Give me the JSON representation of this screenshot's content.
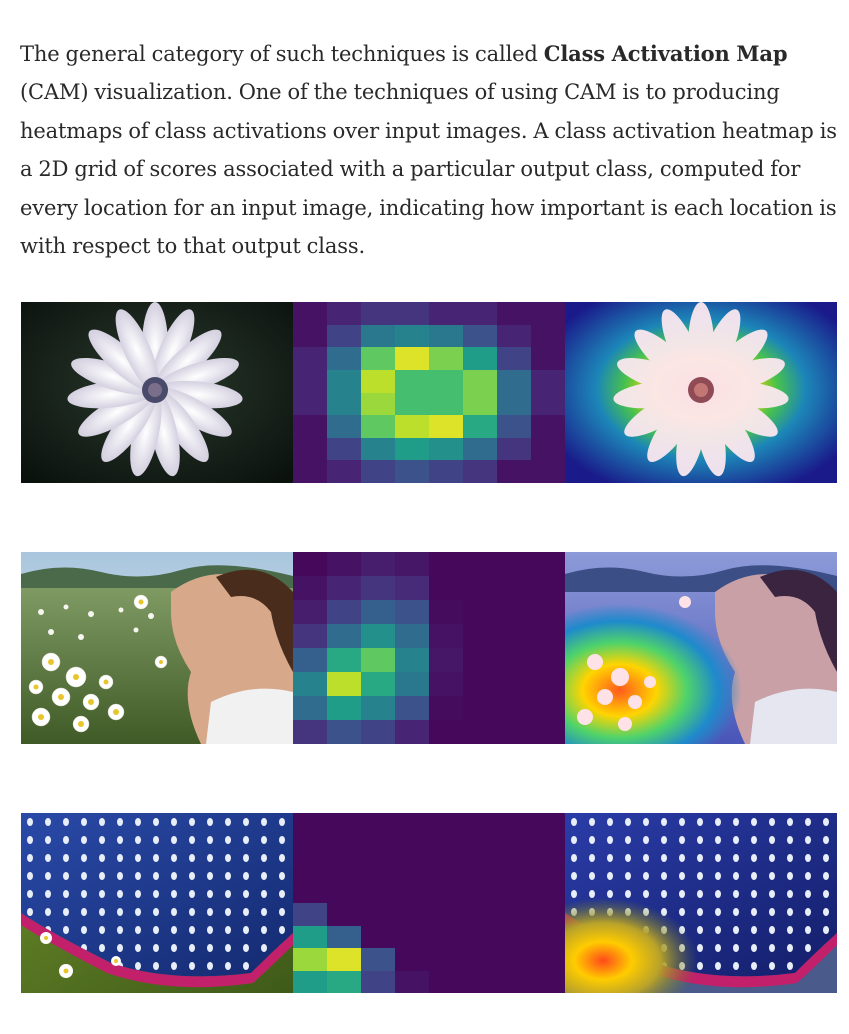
{
  "paragraph": {
    "before_bold": "The general category of such techniques is called ",
    "bold": "Class Activation Map",
    "after_bold": " (CAM) visualization. One of the techniques of using CAM is to producing heatmaps of class activations over input images. A class activation heatmap is a 2D grid of scores associated with a particular output class, computed for every location for an input image, indicating how important is each location is with respect to that output class."
  },
  "figures": [
    {
      "subject": "white daisy flower on dark background",
      "heatmap_grid": [
        [
          0.05,
          0.1,
          0.15,
          0.15,
          0.1,
          0.1,
          0.05,
          0.05
        ],
        [
          0.05,
          0.2,
          0.4,
          0.45,
          0.4,
          0.25,
          0.1,
          0.05
        ],
        [
          0.1,
          0.35,
          0.75,
          0.95,
          0.8,
          0.55,
          0.2,
          0.05
        ],
        [
          0.1,
          0.45,
          0.9,
          0.7,
          0.7,
          0.8,
          0.35,
          0.1
        ],
        [
          0.1,
          0.45,
          0.85,
          0.7,
          0.7,
          0.8,
          0.35,
          0.1
        ],
        [
          0.05,
          0.35,
          0.75,
          0.9,
          0.95,
          0.6,
          0.25,
          0.05
        ],
        [
          0.05,
          0.2,
          0.45,
          0.55,
          0.5,
          0.35,
          0.15,
          0.05
        ],
        [
          0.05,
          0.1,
          0.2,
          0.25,
          0.2,
          0.15,
          0.05,
          0.05
        ]
      ]
    },
    {
      "subject": "girl with daisy bouquet in a field",
      "heatmap_grid": [
        [
          0.02,
          0.05,
          0.08,
          0.06,
          0.02,
          0.02,
          0.02,
          0.02
        ],
        [
          0.05,
          0.1,
          0.15,
          0.12,
          0.02,
          0.02,
          0.02,
          0.02
        ],
        [
          0.08,
          0.2,
          0.3,
          0.25,
          0.03,
          0.02,
          0.02,
          0.02
        ],
        [
          0.15,
          0.35,
          0.5,
          0.35,
          0.05,
          0.02,
          0.02,
          0.02
        ],
        [
          0.3,
          0.6,
          0.75,
          0.45,
          0.06,
          0.02,
          0.02,
          0.02
        ],
        [
          0.45,
          0.9,
          0.6,
          0.4,
          0.05,
          0.02,
          0.02,
          0.02
        ],
        [
          0.35,
          0.55,
          0.45,
          0.25,
          0.03,
          0.02,
          0.02,
          0.02
        ],
        [
          0.15,
          0.25,
          0.2,
          0.1,
          0.02,
          0.02,
          0.02,
          0.02
        ]
      ]
    },
    {
      "subject": "blue polka dot rain boot on grass",
      "heatmap_grid": [
        [
          0.02,
          0.02,
          0.02,
          0.02,
          0.02,
          0.02,
          0.02,
          0.02
        ],
        [
          0.02,
          0.02,
          0.02,
          0.02,
          0.02,
          0.02,
          0.02,
          0.02
        ],
        [
          0.02,
          0.02,
          0.02,
          0.02,
          0.02,
          0.02,
          0.02,
          0.02
        ],
        [
          0.02,
          0.02,
          0.02,
          0.02,
          0.02,
          0.02,
          0.02,
          0.02
        ],
        [
          0.2,
          0.02,
          0.02,
          0.02,
          0.02,
          0.02,
          0.02,
          0.02
        ],
        [
          0.55,
          0.3,
          0.02,
          0.02,
          0.02,
          0.02,
          0.02,
          0.02
        ],
        [
          0.85,
          0.95,
          0.25,
          0.02,
          0.02,
          0.02,
          0.02,
          0.02
        ],
        [
          0.55,
          0.6,
          0.2,
          0.05,
          0.02,
          0.02,
          0.02,
          0.02
        ]
      ]
    }
  ],
  "colors": {
    "text": "#292929",
    "background": "#ffffff"
  }
}
